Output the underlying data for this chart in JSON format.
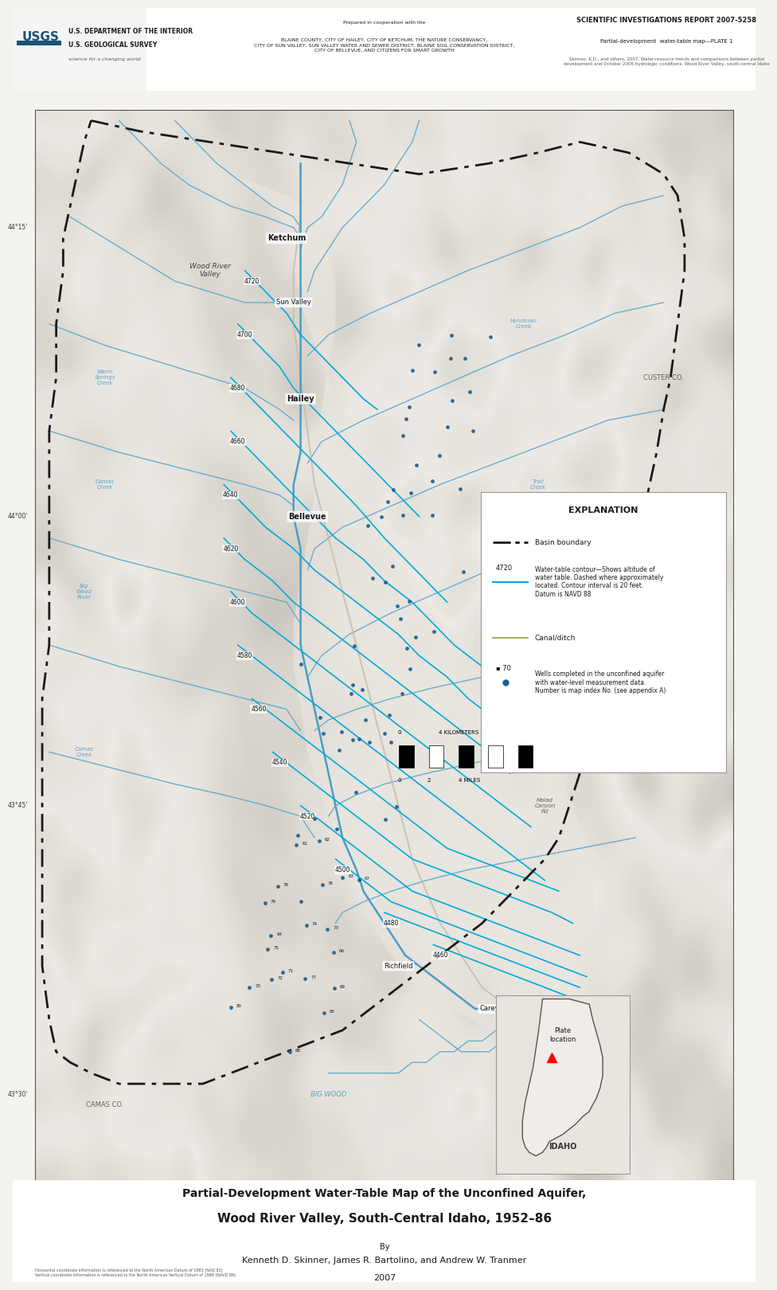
{
  "title_main": "Partial-Development Water-Table Map of the Unconfined Aquifer,",
  "title_sub": "Wood River Valley, South-Central Idaho, 1952–86",
  "by_line": "By",
  "authors": "Kenneth D. Skinner, James R. Bartolino, and Andrew W. Tranmer",
  "year": "2007",
  "report_title": "SCIENTIFIC INVESTIGATIONS REPORT 2007-5258",
  "report_subtitle": "Partial-development  water-table map—PLATE 1",
  "usgs_dept": "U.S. DEPARTMENT OF THE INTERIOR",
  "usgs_survey": "U.S. GEOLOGICAL SURVEY",
  "prepared_with": "Prepared in cooperation with the",
  "cooperators": "BLAINE COUNTY, CITY OF HAILEY, CITY OF KETCHUM, THE NATURE CONSERVANCY,\nCITY OF SUN VALLEY, SUN VALLEY WATER AND SEWER DISTRICT, BLAINE SOIL CONSERVATION DISTRICT,\nCITY OF BELLEVUE, AND CITIZENS FOR SMART GROWTH",
  "citation_short": "Skinner, K.D., and others, 2007, Water-resource trends and comparisons between partial\ndevelopment and October 2006 hydrologic conditions, Wood River Valley, south-central Idaho",
  "bg_color": "#f0eeeb",
  "map_bg": "#d8d4cc",
  "water_color": "#6ab0d4",
  "contour_color": "#00aadd",
  "boundary_color": "#1a1a1a",
  "road_color": "#b0a090",
  "explanation_box_color": "#ffffff",
  "idaho_box_color": "#ffffff",
  "county_label_color": "#555555"
}
